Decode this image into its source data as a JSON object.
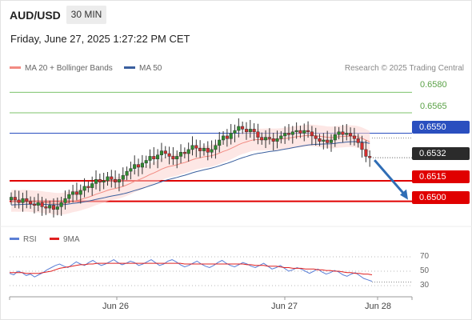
{
  "header": {
    "symbol": "AUD/USD",
    "timeframe": "30 MIN",
    "datetime": "Friday, June 27, 2025 1:27:22 PM CET"
  },
  "legend": {
    "ma20_label": "MA 20 + Bollinger Bands",
    "ma50_label": "MA 50",
    "copyright": "Research © 2025 Trading Central",
    "ma20_color": "#f28b82",
    "ma50_color": "#3a5f9e"
  },
  "price_levels": {
    "resistance_1": "0.6580",
    "resistance_2": "0.6565",
    "pivot": "0.6550",
    "last_price": "0.6532",
    "support_1": "0.6515",
    "support_2": "0.6500"
  },
  "rsi_panel": {
    "rsi_label": "RSI",
    "ma_label": "9MA",
    "ticks": [
      "70",
      "50",
      "30"
    ],
    "rsi_color": "#5b7fd6",
    "ma_color": "#e02020"
  },
  "x_axis": {
    "labels": [
      "Jun 26",
      "Jun 27",
      "Jun 28"
    ]
  },
  "colors": {
    "resistance_green": "#7cc36b",
    "pivot_blue": "#2a4fbf",
    "support_red": "#e00000",
    "candle_green": "#2e8b2e",
    "candle_red": "#d32f2f",
    "forecast_arrow": "#2f6db5"
  },
  "chart_data": {
    "type": "candlestick",
    "y_range": [
      0.6488,
      0.6592
    ],
    "closes": [
      0.6503,
      0.6501,
      0.6499,
      0.6502,
      0.65,
      0.6498,
      0.6497,
      0.6499,
      0.6496,
      0.6495,
      0.6497,
      0.6494,
      0.6496,
      0.6499,
      0.6502,
      0.6505,
      0.6507,
      0.6505,
      0.6508,
      0.6511,
      0.651,
      0.6513,
      0.6516,
      0.6514,
      0.6515,
      0.6518,
      0.6516,
      0.6514,
      0.6516,
      0.6519,
      0.6522,
      0.6524,
      0.6527,
      0.6525,
      0.6528,
      0.653,
      0.6533,
      0.6531,
      0.6534,
      0.6537,
      0.6535,
      0.6533,
      0.6531,
      0.6533,
      0.6536,
      0.6535,
      0.6538,
      0.6541,
      0.6539,
      0.6537,
      0.6539,
      0.6536,
      0.6538,
      0.6541,
      0.6545,
      0.6548,
      0.6546,
      0.655,
      0.6552,
      0.6555,
      0.6553,
      0.6551,
      0.6553,
      0.6551,
      0.6547,
      0.6545,
      0.6547,
      0.6546,
      0.6544,
      0.6546,
      0.6548,
      0.655,
      0.6549,
      0.6551,
      0.6552,
      0.655,
      0.6552,
      0.6551,
      0.6548,
      0.6546,
      0.6544,
      0.6545,
      0.6543,
      0.6545,
      0.6549,
      0.6551,
      0.6549,
      0.655,
      0.6548,
      0.6546,
      0.6543,
      0.6538,
      0.6533,
      0.6532
    ],
    "ma20_start": 0.65,
    "ma50_start": 0.6497,
    "bollinger_width": 0.0008,
    "rsi": {
      "ticks": [
        70,
        50,
        30
      ],
      "values": [
        47,
        45,
        50,
        48,
        44,
        46,
        42,
        45,
        48,
        52,
        55,
        58,
        60,
        57,
        55,
        59,
        63,
        60,
        58,
        62,
        65,
        61,
        58,
        60,
        63,
        66,
        62,
        59,
        61,
        64,
        62,
        58,
        60,
        63,
        66,
        62,
        58,
        60,
        64,
        66,
        63,
        59,
        56,
        58,
        61,
        64,
        60,
        57,
        55,
        58,
        62,
        65,
        61,
        58,
        56,
        59,
        62,
        60,
        57,
        55,
        58,
        61,
        57,
        53,
        55,
        58,
        54,
        50,
        52,
        55,
        53,
        50,
        47,
        50,
        53,
        49,
        46,
        48,
        51,
        49,
        45,
        43,
        46,
        48,
        44,
        40,
        38,
        36
      ],
      "ma9": [
        48,
        48,
        48,
        48,
        47,
        47,
        47,
        47,
        48,
        49,
        50,
        52,
        54,
        55,
        56,
        57,
        58,
        59,
        59,
        60,
        60,
        61,
        61,
        61,
        61,
        61,
        61,
        61,
        61,
        61,
        61,
        61,
        61,
        61,
        61,
        61,
        61,
        61,
        61,
        61,
        61,
        61,
        60,
        60,
        60,
        60,
        60,
        60,
        60,
        60,
        60,
        60,
        60,
        60,
        60,
        60,
        60,
        59,
        59,
        58,
        58,
        58,
        57,
        57,
        57,
        56,
        55,
        55,
        54,
        54,
        54,
        53,
        53,
        53,
        52,
        52,
        51,
        51,
        50,
        50,
        49,
        48,
        48,
        47,
        47,
        46,
        46,
        45
      ]
    }
  }
}
